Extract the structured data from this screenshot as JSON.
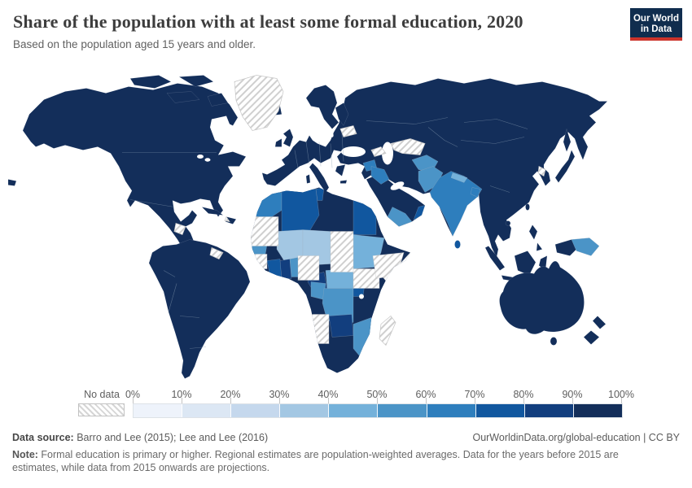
{
  "header": {
    "title": "Share of the population with at least some formal education, 2020",
    "subtitle": "Based on the population aged 15 years and older.",
    "logo": {
      "line1": "Our World",
      "line2": "in Data",
      "bg": "#102d4e",
      "accent": "#cc342b"
    }
  },
  "chart_data": {
    "type": "choropleth_map",
    "title": "Share of the population with at least some formal education, 2020",
    "subtitle": "Based on the population aged 15 years and older.",
    "unit": "%",
    "legend": {
      "no_data_label": "No data",
      "tick_labels": [
        "0%",
        "10%",
        "20%",
        "30%",
        "40%",
        "50%",
        "60%",
        "70%",
        "80%",
        "90%",
        "100%"
      ],
      "colors": [
        "#eef3fb",
        "#dce7f4",
        "#c5d8ed",
        "#a3c7e3",
        "#74b1da",
        "#4b94c7",
        "#2e7ebd",
        "#11579f",
        "#123e7e",
        "#132e5a"
      ],
      "no_data_pattern_line": "#cfcfcf",
      "no_data_border": "#c2c2c2",
      "position": "bottom"
    },
    "map_style": {
      "ocean": "#ffffff",
      "country_border": "#a6b6c6"
    },
    "regions": [
      {
        "name": "United States",
        "bucket": "90-100%"
      },
      {
        "name": "Canada",
        "bucket": "90-100%"
      },
      {
        "name": "Mexico",
        "bucket": "90-100%"
      },
      {
        "name": "South America (most)",
        "bucket": "90-100%"
      },
      {
        "name": "Europe (most)",
        "bucket": "90-100%"
      },
      {
        "name": "Russia",
        "bucket": "90-100%"
      },
      {
        "name": "China",
        "bucket": "90-100%"
      },
      {
        "name": "Japan",
        "bucket": "90-100%"
      },
      {
        "name": "South Korea",
        "bucket": "90-100%"
      },
      {
        "name": "Indonesia",
        "bucket": "90-100%"
      },
      {
        "name": "Australia",
        "bucket": "90-100%"
      },
      {
        "name": "New Zealand",
        "bucket": "90-100%"
      },
      {
        "name": "Saudi Arabia",
        "bucket": "90-100%"
      },
      {
        "name": "Iran",
        "bucket": "90-100%"
      },
      {
        "name": "Turkey",
        "bucket": "90-100%"
      },
      {
        "name": "Libya",
        "bucket": "90-100%"
      },
      {
        "name": "Kenya",
        "bucket": "90-100%"
      },
      {
        "name": "Tanzania",
        "bucket": "90-100%"
      },
      {
        "name": "South Africa",
        "bucket": "90-100%"
      },
      {
        "name": "Ghana",
        "bucket": "80-90%"
      },
      {
        "name": "Zambia",
        "bucket": "80-90%"
      },
      {
        "name": "Cameroon",
        "bucket": "80-90%"
      },
      {
        "name": "Algeria",
        "bucket": "70-80%"
      },
      {
        "name": "Egypt",
        "bucket": "70-80%"
      },
      {
        "name": "Tunisia",
        "bucket": "70-80%"
      },
      {
        "name": "Uganda",
        "bucket": "70-80%"
      },
      {
        "name": "Oman",
        "bucket": "70-80%"
      },
      {
        "name": "Sri Lanka",
        "bucket": "70-80%"
      },
      {
        "name": "Cote d'Ivoire",
        "bucket": "70-80%"
      },
      {
        "name": "India",
        "bucket": "60-70%"
      },
      {
        "name": "Bangladesh",
        "bucket": "60-70%"
      },
      {
        "name": "Morocco",
        "bucket": "60-70%"
      },
      {
        "name": "Iraq",
        "bucket": "60-70%"
      },
      {
        "name": "Syria",
        "bucket": "60-70%"
      },
      {
        "name": "Pakistan",
        "bucket": "50-60%"
      },
      {
        "name": "Afghanistan",
        "bucket": "50-60%"
      },
      {
        "name": "Yemen",
        "bucket": "50-60%"
      },
      {
        "name": "DR Congo",
        "bucket": "50-60%"
      },
      {
        "name": "Senegal",
        "bucket": "50-60%"
      },
      {
        "name": "Togo/Benin",
        "bucket": "50-60%"
      },
      {
        "name": "Gabon/Congo",
        "bucket": "50-60%"
      },
      {
        "name": "Mozambique",
        "bucket": "50-60%"
      },
      {
        "name": "Papua New Guinea",
        "bucket": "50-60%"
      },
      {
        "name": "Sudan",
        "bucket": "40-50%"
      },
      {
        "name": "Central African Republic",
        "bucket": "40-50%"
      },
      {
        "name": "Nepal",
        "bucket": "40-50%"
      },
      {
        "name": "Mali",
        "bucket": "30-40%"
      },
      {
        "name": "Niger",
        "bucket": "30-40%"
      },
      {
        "name": "Burkina Faso",
        "bucket": "30-40%"
      },
      {
        "name": "Greenland",
        "bucket": "No data"
      },
      {
        "name": "Mauritania/Western Sahara",
        "bucket": "No data"
      },
      {
        "name": "Chad",
        "bucket": "No data"
      },
      {
        "name": "Nigeria",
        "bucket": "No data"
      },
      {
        "name": "Guinea",
        "bucket": "No data"
      },
      {
        "name": "South Sudan",
        "bucket": "No data"
      },
      {
        "name": "Ethiopia",
        "bucket": "No data"
      },
      {
        "name": "Somalia",
        "bucket": "No data"
      },
      {
        "name": "Angola",
        "bucket": "No data"
      },
      {
        "name": "Madagascar",
        "bucket": "No data"
      },
      {
        "name": "Belarus",
        "bucket": "No data"
      },
      {
        "name": "Caucasus (Georgia/Azerbaijan)",
        "bucket": "No data"
      },
      {
        "name": "Turkmenistan/Uzbekistan",
        "bucket": "No data"
      },
      {
        "name": "North Korea",
        "bucket": "No data"
      },
      {
        "name": "Guyana/Suriname",
        "bucket": "No data"
      },
      {
        "name": "Haiti",
        "bucket": "No data"
      },
      {
        "name": "Central America (parts)",
        "bucket": "No data"
      }
    ]
  },
  "footer": {
    "datasource_label": "Data source:",
    "datasource": " Barro and Lee (2015); Lee and Lee (2016)",
    "link": "OurWorldinData.org/global-education | CC BY",
    "note_label": "Note:",
    "note": " Formal education is primary or higher. Regional estimates are population-weighted averages. Data for the years before 2015 are estimates, while data from 2015 onwards are projections."
  }
}
